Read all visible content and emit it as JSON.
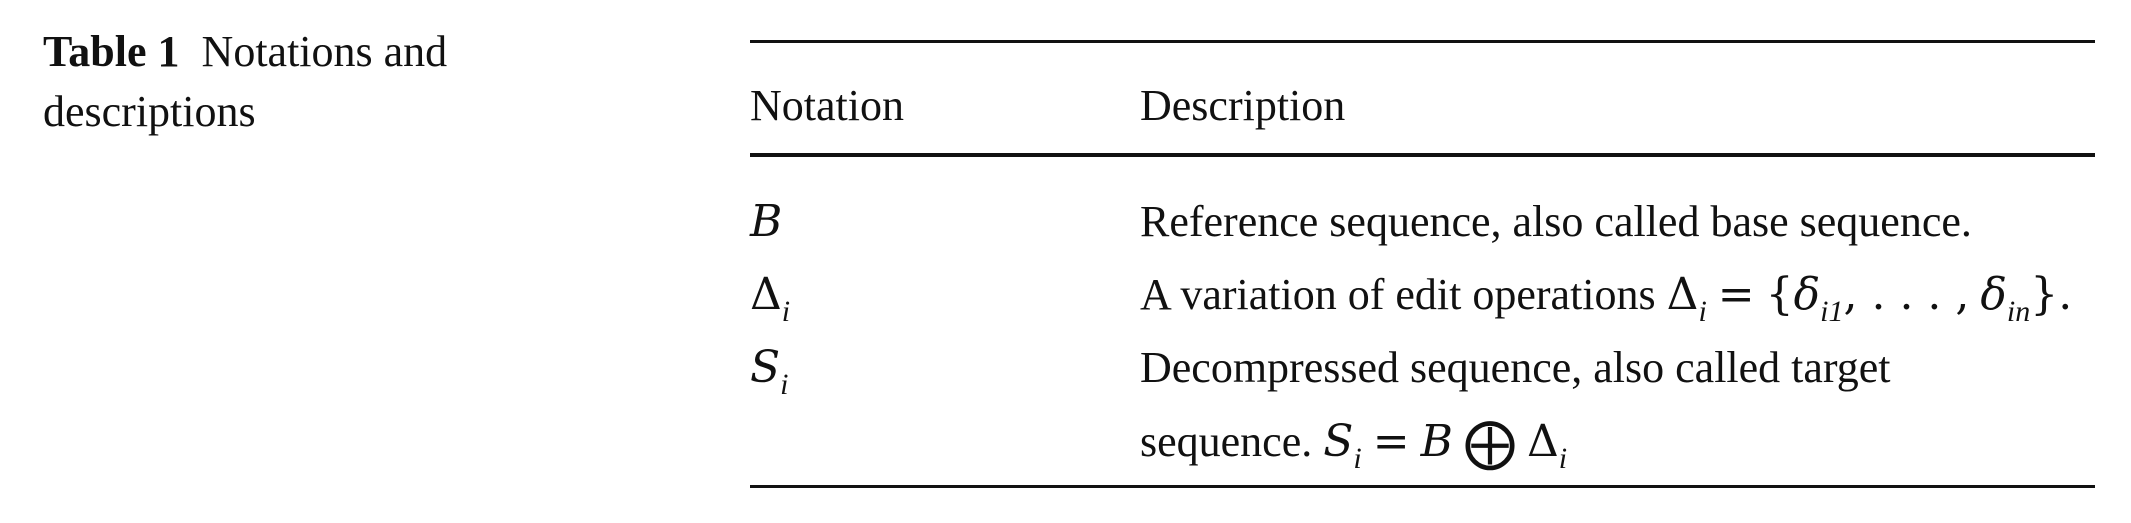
{
  "caption": {
    "label": "Table 1",
    "text": "Notations and descriptions"
  },
  "table": {
    "headers": {
      "notation": "Notation",
      "description": "Description"
    },
    "rows": [
      {
        "notation": "B",
        "description": "Reference sequence, also called base sequence."
      },
      {
        "notation_symbol": "Δ",
        "notation_sub": "i",
        "description_text": "A variation of edit operations",
        "description_math": {
          "lhs": "Δ",
          "lhs_sub": "i",
          "eq": "=",
          "open": "{",
          "delta": "δ",
          "first_sub": "i1",
          "ellipsis": ", . . . ,",
          "last_sub": "in",
          "close": "}."
        }
      },
      {
        "notation_symbol": "S",
        "notation_sub": "i",
        "description_line1": "Decompressed sequence, also called target",
        "description_line2_text": "sequence.",
        "description_math": {
          "lhs": "S",
          "lhs_sub": "i",
          "eq": "=",
          "b": "B",
          "op": "⨁",
          "delta": "Δ",
          "delta_sub": "i"
        }
      }
    ]
  }
}
